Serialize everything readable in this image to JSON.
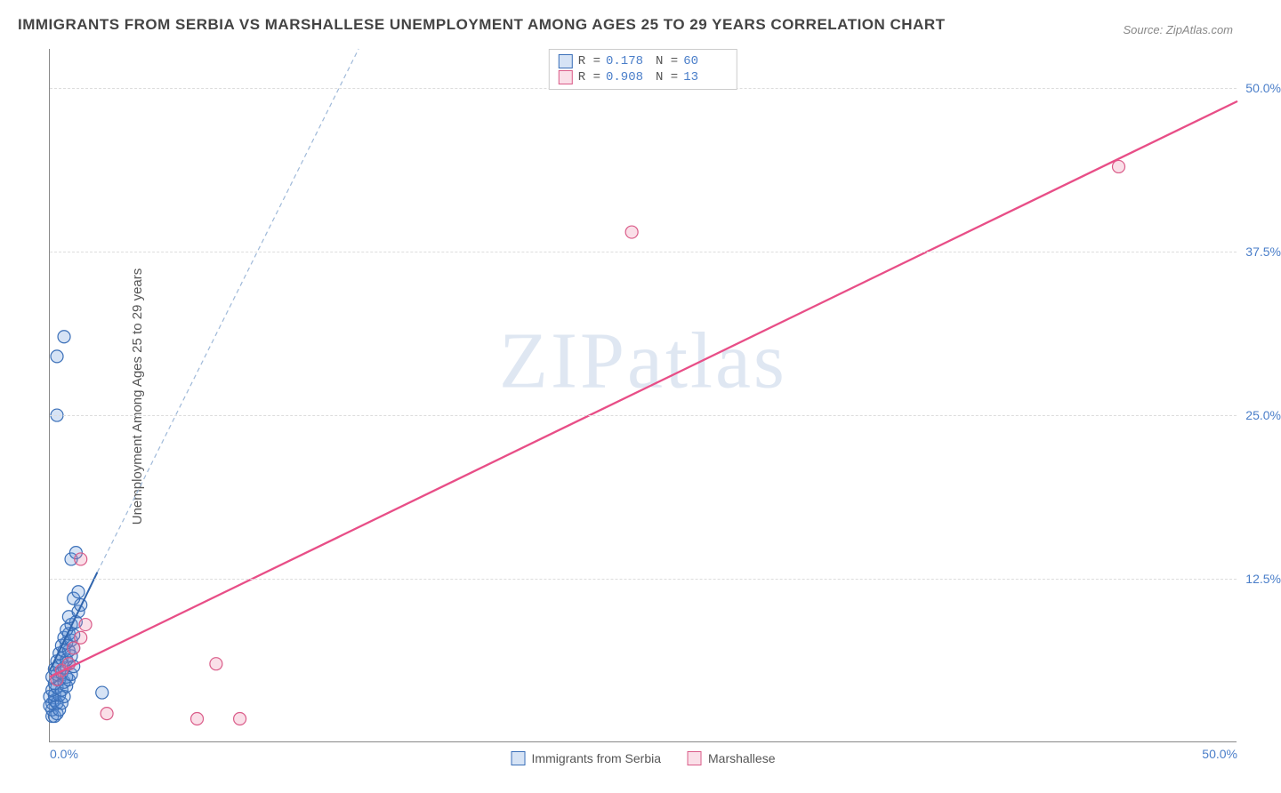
{
  "title": "IMMIGRANTS FROM SERBIA VS MARSHALLESE UNEMPLOYMENT AMONG AGES 25 TO 29 YEARS CORRELATION CHART",
  "source": "Source: ZipAtlas.com",
  "ylabel": "Unemployment Among Ages 25 to 29 years",
  "watermark": "ZIPatlas",
  "chart": {
    "type": "scatter",
    "xlim": [
      0,
      50
    ],
    "ylim": [
      0,
      53
    ],
    "xticks": [
      {
        "pos": 0,
        "label": "0.0%",
        "align": "left"
      },
      {
        "pos": 50,
        "label": "50.0%",
        "align": "right"
      }
    ],
    "yticks": [
      {
        "pos": 12.5,
        "label": "12.5%"
      },
      {
        "pos": 25.0,
        "label": "25.0%"
      },
      {
        "pos": 37.5,
        "label": "37.5%"
      },
      {
        "pos": 50.0,
        "label": "50.0%"
      }
    ],
    "grid_color": "#dddddd",
    "background_color": "#ffffff",
    "marker_radius": 7,
    "marker_stroke_width": 1.2,
    "marker_fill_opacity": 0.25,
    "series": [
      {
        "key": "serbia",
        "label": "Immigrants from Serbia",
        "color": "#5b8fd6",
        "stroke": "#3a6fb8",
        "R": "0.178",
        "N": "60",
        "trend": {
          "x1": 0,
          "y1": 5.5,
          "x2": 2.0,
          "y2": 13.0,
          "color": "#2f64ad",
          "width": 2.0,
          "dash": ""
        },
        "trend_ext": {
          "x1": 2.0,
          "y1": 13.0,
          "x2": 13.0,
          "y2": 53.0,
          "color": "#9fb9d9",
          "width": 1.2,
          "dash": "5,4"
        },
        "points": [
          [
            0.1,
            2.0
          ],
          [
            0.2,
            2.0
          ],
          [
            0.1,
            2.5
          ],
          [
            0.3,
            2.2
          ],
          [
            0.0,
            2.8
          ],
          [
            0.4,
            2.5
          ],
          [
            0.1,
            3.0
          ],
          [
            0.2,
            3.2
          ],
          [
            0.3,
            3.0
          ],
          [
            0.5,
            3.0
          ],
          [
            0.0,
            3.5
          ],
          [
            0.2,
            3.6
          ],
          [
            0.4,
            3.6
          ],
          [
            0.6,
            3.5
          ],
          [
            0.1,
            4.0
          ],
          [
            0.3,
            4.2
          ],
          [
            0.5,
            4.0
          ],
          [
            0.7,
            4.3
          ],
          [
            0.2,
            4.5
          ],
          [
            0.4,
            4.8
          ],
          [
            0.6,
            4.6
          ],
          [
            0.8,
            4.8
          ],
          [
            0.1,
            5.0
          ],
          [
            0.3,
            5.2
          ],
          [
            0.5,
            5.3
          ],
          [
            0.7,
            5.0
          ],
          [
            0.9,
            5.2
          ],
          [
            0.2,
            5.6
          ],
          [
            0.4,
            5.8
          ],
          [
            0.6,
            5.7
          ],
          [
            0.8,
            6.0
          ],
          [
            1.0,
            5.8
          ],
          [
            0.3,
            6.2
          ],
          [
            0.5,
            6.4
          ],
          [
            0.7,
            6.3
          ],
          [
            0.9,
            6.6
          ],
          [
            0.4,
            6.8
          ],
          [
            0.6,
            7.0
          ],
          [
            0.8,
            7.0
          ],
          [
            1.0,
            7.2
          ],
          [
            0.5,
            7.4
          ],
          [
            0.7,
            7.6
          ],
          [
            0.9,
            7.8
          ],
          [
            0.6,
            8.0
          ],
          [
            0.8,
            8.3
          ],
          [
            1.0,
            8.2
          ],
          [
            0.7,
            8.6
          ],
          [
            0.9,
            9.0
          ],
          [
            1.1,
            9.2
          ],
          [
            0.8,
            9.6
          ],
          [
            1.2,
            10.0
          ],
          [
            1.3,
            10.5
          ],
          [
            1.0,
            11.0
          ],
          [
            1.2,
            11.5
          ],
          [
            0.9,
            14.0
          ],
          [
            1.1,
            14.5
          ],
          [
            2.2,
            3.8
          ],
          [
            0.3,
            25.0
          ],
          [
            0.3,
            29.5
          ],
          [
            0.6,
            31.0
          ]
        ]
      },
      {
        "key": "marshallese",
        "label": "Marshallese",
        "color": "#ec7fa5",
        "stroke": "#da5c89",
        "R": "0.908",
        "N": "13",
        "trend": {
          "x1": 0,
          "y1": 5.0,
          "x2": 50,
          "y2": 49.0,
          "color": "#e84e87",
          "width": 2.3,
          "dash": ""
        },
        "points": [
          [
            0.3,
            4.8
          ],
          [
            0.5,
            5.5
          ],
          [
            0.8,
            6.0
          ],
          [
            1.0,
            7.2
          ],
          [
            1.3,
            8.0
          ],
          [
            1.5,
            9.0
          ],
          [
            1.3,
            14.0
          ],
          [
            2.4,
            2.2
          ],
          [
            6.2,
            1.8
          ],
          [
            8.0,
            1.8
          ],
          [
            7.0,
            6.0
          ],
          [
            24.5,
            39.0
          ],
          [
            45.0,
            44.0
          ]
        ]
      }
    ]
  }
}
